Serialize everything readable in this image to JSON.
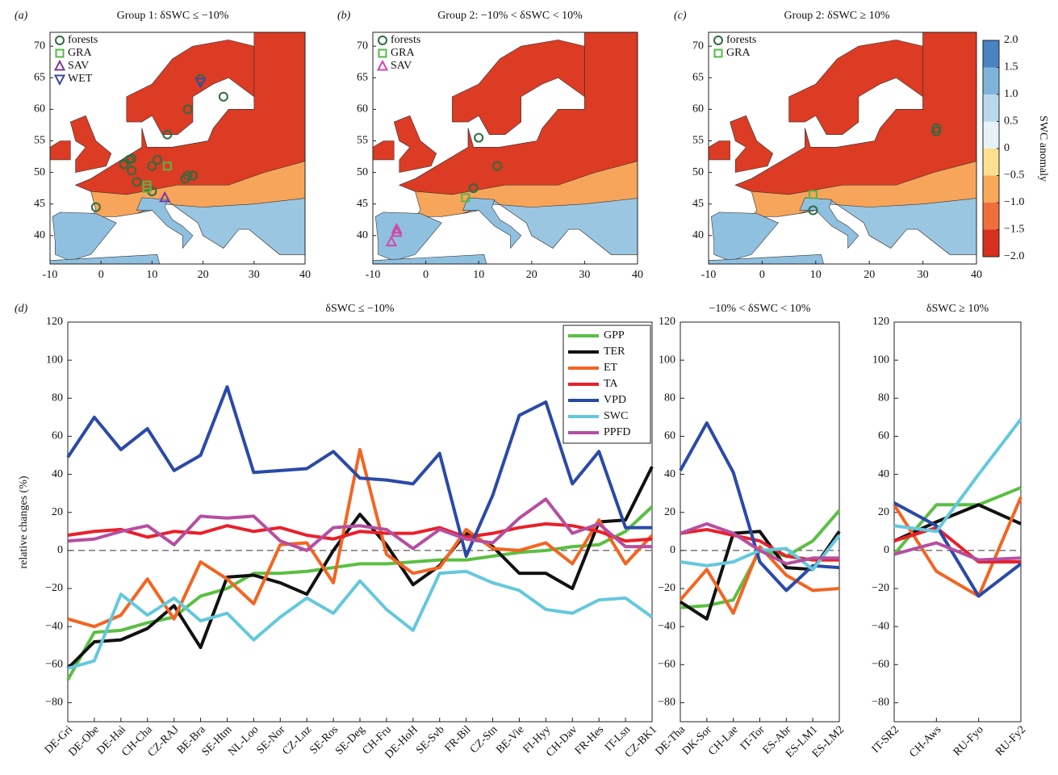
{
  "chart_data": [
    {
      "type": "map",
      "panel": "(a)",
      "title": "Group 1: δSWC ≤ −10%",
      "xlim": [
        -10,
        40
      ],
      "xticks": [
        -10,
        0,
        10,
        20,
        30,
        40
      ],
      "ylim": [
        35.5,
        72.2
      ],
      "yticks": [
        40,
        45,
        50,
        55,
        60,
        65,
        70
      ],
      "series": [
        {
          "name": "forests",
          "marker": "circle",
          "color": "#2e6b3e",
          "x": [
            -1,
            4.5,
            5.5,
            6,
            7,
            6,
            10,
            11,
            16.5,
            17,
            18,
            13,
            17,
            19.5,
            24,
            10
          ],
          "y": [
            44.5,
            51.3,
            52,
            50.3,
            48.5,
            52.2,
            51,
            52,
            49,
            49.5,
            49.5,
            56,
            60,
            64.8,
            62,
            47
          ]
        },
        {
          "name": "GRA",
          "marker": "square",
          "color": "#55b848",
          "x": [
            13,
            9,
            9
          ],
          "y": [
            51,
            47.5,
            48
          ]
        },
        {
          "name": "SAV",
          "marker": "triangle",
          "color": "#7a3a9a",
          "x": [
            12.5
          ],
          "y": [
            46
          ]
        },
        {
          "name": "WET",
          "marker": "triangle-down",
          "color": "#3a4aa0",
          "x": [
            19.5
          ],
          "y": [
            64.3
          ]
        }
      ]
    },
    {
      "type": "map",
      "panel": "(b)",
      "title": "Group 2: −10% < δSWC < 10%",
      "xlim": [
        -10,
        40
      ],
      "xticks": [
        -10,
        0,
        10,
        20,
        30,
        40
      ],
      "ylim": [
        35.5,
        72.2
      ],
      "yticks": [
        40,
        45,
        50,
        55,
        60,
        65,
        70
      ],
      "series": [
        {
          "name": "forests",
          "marker": "circle",
          "color": "#2e6b3e",
          "x": [
            10,
            13.5,
            9
          ],
          "y": [
            55.5,
            51,
            47.5
          ]
        },
        {
          "name": "GRA",
          "marker": "square",
          "color": "#55b848",
          "x": [
            7.5
          ],
          "y": [
            46
          ]
        },
        {
          "name": "SAV",
          "marker": "triangle",
          "color": "#d048a8",
          "x": [
            -6.5,
            -5.5,
            -5.5
          ],
          "y": [
            39,
            40.5,
            41
          ]
        }
      ]
    },
    {
      "type": "map",
      "panel": "(c)",
      "title": "Group 2: δSWC ≥ 10%",
      "xlim": [
        -10,
        40
      ],
      "xticks": [
        -10,
        0,
        10,
        20,
        30,
        40
      ],
      "ylim": [
        35.5,
        72.2
      ],
      "yticks": [
        40,
        45,
        50,
        55,
        60,
        65,
        70
      ],
      "series": [
        {
          "name": "forests",
          "marker": "circle",
          "color": "#2e6b3e",
          "x": [
            32.5,
            32.5,
            9.5
          ],
          "y": [
            57,
            56.5,
            44
          ]
        },
        {
          "name": "GRA",
          "marker": "square",
          "color": "#55b848",
          "x": [
            9.5
          ],
          "y": [
            46.5
          ]
        }
      ],
      "colorbar": {
        "label": "SWC anomaly",
        "lim": [
          -2,
          2
        ],
        "colors": [
          "#d7301f",
          "#ef6e3c",
          "#f7a859",
          "#fde08f",
          "#e6f2f8",
          "#b8d9ec",
          "#7fb4da",
          "#4a83c3"
        ],
        "ticks": [
          {
            "value": 2,
            "label": "2.0"
          },
          1.5,
          {
            "value": 1,
            "label": "1.0"
          },
          0.5,
          0,
          {
            "value": -0.5,
            "label": "−0.5"
          },
          {
            "value": -1,
            "label": "−1.0"
          },
          {
            "value": -1.5,
            "label": "−1.5"
          },
          {
            "value": -2,
            "label": "−2.0"
          }
        ]
      }
    },
    {
      "type": "line",
      "panel": "(d)",
      "title": "δSWC ≤ −10%",
      "ylabel": "relative changes (%)",
      "categories": [
        "DE-Gri",
        "DE-Obe",
        "DE-Hai",
        "CH-Cha",
        "CZ-RAJ",
        "BE-Bra",
        "SE-Htm",
        "NL-Loo",
        "SE-Nor",
        "CZ-Lnz",
        "SE-Ros",
        "SE-Deg",
        "CH-Fru",
        "DE-HoH",
        "SE-Svb",
        "FR-Bil",
        "CZ-Stn",
        "BE-Vie",
        "FI-Hyy",
        "CH-Dav",
        "FR-Hes",
        "IT-Lsn",
        "CZ-BK1"
      ],
      "ylim": [
        -90,
        120
      ],
      "yticks": [
        {
          "value": -80,
          "label": "−80"
        },
        {
          "value": -60,
          "label": "−60"
        },
        {
          "value": -40,
          "label": "−40"
        },
        {
          "value": -20,
          "label": "−20"
        },
        0,
        20,
        40,
        60,
        80,
        100,
        120
      ],
      "reference_line": 0,
      "legend": "upper right",
      "series": [
        {
          "name": "GPP",
          "color": "#5bbf42",
          "values": [
            -68,
            -43,
            -42,
            -38,
            -35,
            -24,
            -20,
            -12,
            -12,
            -11,
            -9,
            -7,
            -7,
            -6,
            -5,
            -5,
            -3,
            -1,
            0,
            2,
            3,
            10,
            23
          ]
        },
        {
          "name": "TER",
          "color": "#111111",
          "values": [
            -62,
            -48,
            -47,
            -41,
            -29,
            -51,
            -14,
            -13,
            -17,
            -23,
            0,
            19,
            3,
            -18,
            -8,
            9,
            2,
            -12,
            -12,
            -20,
            15,
            16,
            44
          ]
        },
        {
          "name": "ET",
          "color": "#f26522",
          "values": [
            -36,
            -40,
            -34,
            -15,
            -36,
            -6,
            -15,
            -28,
            3,
            4,
            -17,
            53,
            -2,
            -12,
            -9,
            11,
            1,
            0,
            4,
            -7,
            16,
            -7,
            8
          ]
        },
        {
          "name": "TA",
          "color": "#e8202a",
          "values": [
            8,
            10,
            11,
            7,
            10,
            9,
            13,
            10,
            12,
            8,
            6,
            10,
            9,
            9,
            12,
            7,
            9,
            12,
            14,
            13,
            10,
            5,
            6
          ]
        },
        {
          "name": "VPD",
          "color": "#2a4aa8",
          "values": [
            49,
            70,
            53,
            64,
            42,
            50,
            86,
            41,
            42,
            43,
            52,
            38,
            37,
            35,
            51,
            -3,
            29,
            71,
            78,
            35,
            52,
            12,
            12
          ]
        },
        {
          "name": "SWC",
          "color": "#64c8dc",
          "values": [
            -62,
            -58,
            -23,
            -34,
            -25,
            -37,
            -33,
            -47,
            -35,
            -25,
            -33,
            -16,
            -31,
            -42,
            -12,
            -11,
            -17,
            -21,
            -31,
            -33,
            -26,
            -25,
            -35
          ]
        },
        {
          "name": "PPFD",
          "color": "#b64ea0",
          "values": [
            5,
            6,
            10,
            13,
            3,
            18,
            17,
            18,
            5,
            0,
            12,
            13,
            11,
            1,
            11,
            6,
            4,
            17,
            27,
            9,
            14,
            2,
            2
          ]
        }
      ]
    },
    {
      "type": "line",
      "title": "−10% < δSWC < 10%",
      "categories": [
        "DE-Tha",
        "DK-Sor",
        "CH-Lae",
        "IT-Tor",
        "ES-Abr",
        "ES-LM1",
        "ES-LM2"
      ],
      "ylim": [
        -90,
        120
      ],
      "yticks": [
        {
          "value": -80,
          "label": "−80"
        },
        {
          "value": -60,
          "label": "−60"
        },
        {
          "value": -40,
          "label": "−40"
        },
        {
          "value": -20,
          "label": "−20"
        },
        0,
        20,
        40,
        60,
        80,
        100,
        120
      ],
      "reference_line": 0,
      "series": [
        {
          "color": "#5bbf42",
          "values": [
            -30,
            -29,
            -26,
            0,
            -3,
            5,
            21
          ]
        },
        {
          "color": "#111111",
          "values": [
            -27,
            -36,
            9,
            10,
            -9,
            -10,
            10
          ]
        },
        {
          "color": "#f26522",
          "values": [
            -26,
            -10,
            -33,
            2,
            -13,
            -21,
            -20
          ]
        },
        {
          "color": "#e8202a",
          "values": [
            9,
            11,
            8,
            5,
            -3,
            -5,
            -5
          ]
        },
        {
          "color": "#2a4aa8",
          "values": [
            42,
            67,
            41,
            -6,
            -21,
            -8,
            -9
          ]
        },
        {
          "color": "#64c8dc",
          "values": [
            -6,
            -8,
            -6,
            0,
            1,
            -10,
            8
          ]
        },
        {
          "color": "#b64ea0",
          "values": [
            9,
            14,
            9,
            0,
            -7,
            -4,
            -4
          ]
        }
      ]
    },
    {
      "type": "line",
      "title": "δSWC ≥ 10%",
      "categories": [
        "IT-SR2",
        "CH-Aws",
        "RU-Fyo",
        "RU-Fy2"
      ],
      "ylim": [
        -90,
        120
      ],
      "yticks": [
        {
          "value": -80,
          "label": "−80"
        },
        {
          "value": -60,
          "label": "−60"
        },
        {
          "value": -40,
          "label": "−40"
        },
        {
          "value": -20,
          "label": "−20"
        },
        0,
        20,
        40,
        60,
        80,
        100,
        120
      ],
      "reference_line": 0,
      "series": [
        {
          "color": "#5bbf42",
          "values": [
            -2,
            24,
            24,
            33
          ]
        },
        {
          "color": "#111111",
          "values": [
            5,
            15,
            24,
            14
          ]
        },
        {
          "color": "#f26522",
          "values": [
            24,
            -11,
            -24,
            28
          ]
        },
        {
          "color": "#e8202a",
          "values": [
            5,
            12,
            -6,
            -6
          ]
        },
        {
          "color": "#2a4aa8",
          "values": [
            25,
            13,
            -24,
            -7
          ]
        },
        {
          "color": "#64c8dc",
          "values": [
            13,
            10,
            40,
            69
          ]
        },
        {
          "color": "#b64ea0",
          "values": [
            -2,
            4,
            -5,
            -4
          ]
        }
      ]
    }
  ]
}
